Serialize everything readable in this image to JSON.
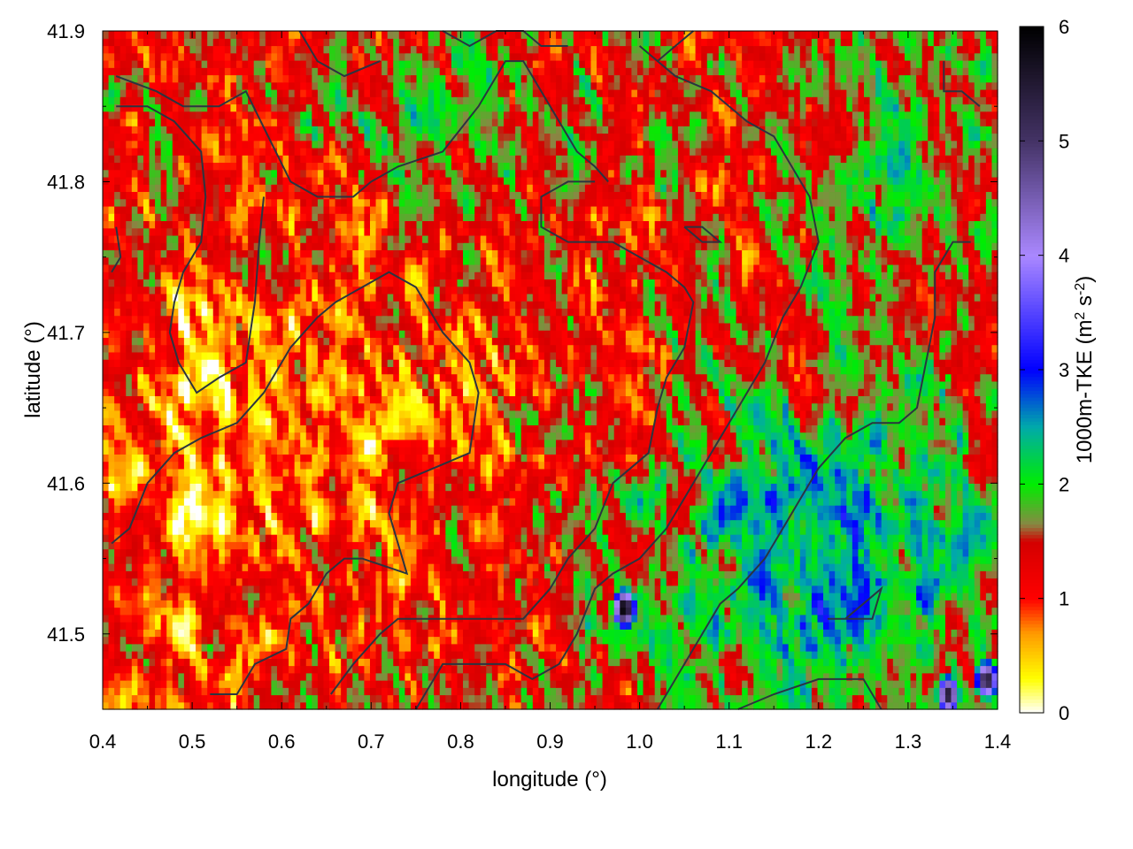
{
  "chart_data": {
    "type": "heatmap",
    "title": "",
    "xlabel": "longitude (°)",
    "ylabel": "latitude (°)",
    "colorbar_label_parts": [
      "1000m-TKE (m",
      "2",
      " s",
      "-2",
      ")"
    ],
    "xlim": [
      0.4,
      1.4
    ],
    "ylim": [
      41.45,
      41.9
    ],
    "x_ticks": [
      0.4,
      0.5,
      0.6,
      0.7,
      0.8,
      0.9,
      1.0,
      1.1,
      1.2,
      1.3,
      1.4
    ],
    "x_tick_labels": [
      "0.4",
      "0.5",
      "0.6",
      "0.7",
      "0.8",
      "0.9",
      "1.0",
      "1.1",
      "1.2",
      "1.3",
      "1.4"
    ],
    "y_ticks": [
      41.5,
      41.6,
      41.7,
      41.8,
      41.9
    ],
    "y_tick_labels": [
      "41.5",
      "41.6",
      "41.7",
      "41.8",
      "41.9"
    ],
    "colorbar_range": [
      0,
      6
    ],
    "colorbar_ticks": [
      0,
      1,
      2,
      3,
      4,
      5,
      6
    ],
    "colorbar_tick_labels": [
      "0",
      "1",
      "2",
      "3",
      "4",
      "5",
      "6"
    ],
    "colormap_stops": [
      {
        "value": 0.0,
        "color": "#ffffff"
      },
      {
        "value": 0.3,
        "color": "#ffff00"
      },
      {
        "value": 0.7,
        "color": "#ff9900"
      },
      {
        "value": 1.0,
        "color": "#ff0000"
      },
      {
        "value": 1.5,
        "color": "#d40000"
      },
      {
        "value": 1.65,
        "color": "#888844"
      },
      {
        "value": 2.0,
        "color": "#00ee00"
      },
      {
        "value": 2.5,
        "color": "#00aaaa"
      },
      {
        "value": 3.0,
        "color": "#0000ff"
      },
      {
        "value": 4.0,
        "color": "#aa88ff"
      },
      {
        "value": 5.0,
        "color": "#443366"
      },
      {
        "value": 6.0,
        "color": "#000000"
      }
    ],
    "field_approx": {
      "background_value": 1.2,
      "grid_spacing_deg": 0.0065,
      "regions": [
        {
          "name": "west-low",
          "lon": [
            0.4,
            0.62
          ],
          "lat": [
            41.5,
            41.75
          ],
          "value": 0.55
        },
        {
          "name": "central-low",
          "lon": [
            0.62,
            0.85
          ],
          "lat": [
            41.58,
            41.7
          ],
          "value": 0.75
        },
        {
          "name": "southeast-high",
          "lon": [
            1.0,
            1.4
          ],
          "lat": [
            41.45,
            41.65
          ],
          "value": 2.6
        },
        {
          "name": "northeast-high",
          "lon": [
            1.15,
            1.4
          ],
          "lat": [
            41.7,
            41.9
          ],
          "value": 1.9
        },
        {
          "name": "north-mixed",
          "lon": [
            0.6,
            1.0
          ],
          "lat": [
            41.8,
            41.9
          ],
          "value": 1.9
        }
      ],
      "hotspots": [
        {
          "lon": 0.983,
          "lat": 41.517,
          "value": 6.0
        },
        {
          "lon": 1.345,
          "lat": 41.46,
          "value": 5.5
        },
        {
          "lon": 1.388,
          "lat": 41.47,
          "value": 5.5
        }
      ]
    },
    "contours": [
      [
        [
          0.415,
          41.87
        ],
        [
          0.46,
          41.86
        ],
        [
          0.49,
          41.85
        ],
        [
          0.53,
          41.85
        ],
        [
          0.56,
          41.86
        ],
        [
          0.585,
          41.83
        ],
        [
          0.61,
          41.8
        ],
        [
          0.64,
          41.79
        ],
        [
          0.68,
          41.79
        ],
        [
          0.7,
          41.8
        ],
        [
          0.73,
          41.81
        ],
        [
          0.78,
          41.82
        ],
        [
          0.82,
          41.85
        ],
        [
          0.85,
          41.88
        ],
        [
          0.87,
          41.88
        ],
        [
          0.9,
          41.85
        ],
        [
          0.93,
          41.82
        ],
        [
          0.95,
          41.81
        ],
        [
          0.965,
          41.8
        ]
      ],
      [
        [
          0.415,
          41.85
        ],
        [
          0.45,
          41.85
        ],
        [
          0.48,
          41.84
        ],
        [
          0.51,
          41.82
        ],
        [
          0.515,
          41.79
        ],
        [
          0.51,
          41.76
        ],
        [
          0.49,
          41.74
        ],
        [
          0.48,
          41.72
        ],
        [
          0.475,
          41.7
        ],
        [
          0.485,
          41.68
        ],
        [
          0.505,
          41.66
        ],
        [
          0.53,
          41.67
        ],
        [
          0.56,
          41.68
        ],
        [
          0.57,
          41.72
        ],
        [
          0.575,
          41.76
        ],
        [
          0.58,
          41.79
        ]
      ],
      [
        [
          0.41,
          41.56
        ],
        [
          0.43,
          41.57
        ],
        [
          0.45,
          41.6
        ],
        [
          0.48,
          41.62
        ],
        [
          0.51,
          41.63
        ],
        [
          0.55,
          41.64
        ],
        [
          0.58,
          41.66
        ],
        [
          0.61,
          41.69
        ],
        [
          0.64,
          41.71
        ],
        [
          0.66,
          41.72
        ],
        [
          0.69,
          41.73
        ],
        [
          0.72,
          41.74
        ],
        [
          0.75,
          41.73
        ],
        [
          0.78,
          41.7
        ],
        [
          0.81,
          41.68
        ],
        [
          0.82,
          41.66
        ],
        [
          0.81,
          41.62
        ],
        [
          0.77,
          41.61
        ],
        [
          0.73,
          41.6
        ],
        [
          0.72,
          41.58
        ],
        [
          0.73,
          41.56
        ],
        [
          0.74,
          41.54
        ],
        [
          0.69,
          41.55
        ],
        [
          0.67,
          41.55
        ],
        [
          0.65,
          41.54
        ],
        [
          0.63,
          41.52
        ],
        [
          0.61,
          41.51
        ],
        [
          0.605,
          41.49
        ],
        [
          0.57,
          41.48
        ],
        [
          0.55,
          41.46
        ],
        [
          0.52,
          41.46
        ]
      ],
      [
        [
          0.655,
          41.46
        ],
        [
          0.68,
          41.48
        ],
        [
          0.71,
          41.5
        ],
        [
          0.73,
          41.51
        ],
        [
          0.76,
          41.51
        ],
        [
          0.8,
          41.51
        ],
        [
          0.84,
          41.51
        ],
        [
          0.87,
          41.51
        ],
        [
          0.9,
          41.53
        ],
        [
          0.92,
          41.55
        ],
        [
          0.95,
          41.57
        ],
        [
          0.97,
          41.6
        ],
        [
          0.99,
          41.61
        ],
        [
          1.01,
          41.62
        ],
        [
          1.02,
          41.65
        ],
        [
          1.03,
          41.67
        ],
        [
          1.05,
          41.69
        ],
        [
          1.06,
          41.72
        ],
        [
          1.05,
          41.73
        ],
        [
          1.03,
          41.74
        ],
        [
          1.0,
          41.75
        ],
        [
          0.97,
          41.76
        ],
        [
          0.95,
          41.76
        ],
        [
          0.92,
          41.76
        ],
        [
          0.89,
          41.77
        ],
        [
          0.89,
          41.79
        ],
        [
          0.92,
          41.8
        ],
        [
          0.95,
          41.8
        ]
      ],
      [
        [
          0.75,
          41.45
        ],
        [
          0.78,
          41.48
        ],
        [
          0.81,
          41.48
        ],
        [
          0.85,
          41.48
        ],
        [
          0.88,
          41.47
        ],
        [
          0.91,
          41.48
        ],
        [
          0.93,
          41.5
        ],
        [
          0.95,
          41.53
        ],
        [
          0.97,
          41.54
        ],
        [
          1.0,
          41.55
        ],
        [
          1.03,
          41.57
        ],
        [
          1.06,
          41.6
        ],
        [
          1.08,
          41.62
        ],
        [
          1.1,
          41.64
        ],
        [
          1.12,
          41.66
        ],
        [
          1.14,
          41.68
        ],
        [
          1.16,
          41.71
        ],
        [
          1.18,
          41.73
        ],
        [
          1.2,
          41.76
        ],
        [
          1.19,
          41.79
        ],
        [
          1.17,
          41.81
        ],
        [
          1.15,
          41.83
        ],
        [
          1.12,
          41.84
        ],
        [
          1.08,
          41.86
        ],
        [
          1.04,
          41.87
        ],
        [
          1.0,
          41.89
        ]
      ],
      [
        [
          1.02,
          41.45
        ],
        [
          1.05,
          41.48
        ],
        [
          1.07,
          41.5
        ],
        [
          1.09,
          41.52
        ],
        [
          1.11,
          41.53
        ],
        [
          1.14,
          41.55
        ],
        [
          1.16,
          41.57
        ],
        [
          1.18,
          41.59
        ],
        [
          1.2,
          41.61
        ],
        [
          1.23,
          41.63
        ],
        [
          1.26,
          41.64
        ],
        [
          1.29,
          41.64
        ],
        [
          1.31,
          41.65
        ],
        [
          1.32,
          41.68
        ],
        [
          1.33,
          41.71
        ],
        [
          1.33,
          41.74
        ],
        [
          1.35,
          41.76
        ],
        [
          1.37,
          41.76
        ]
      ],
      [
        [
          1.11,
          41.45
        ],
        [
          1.15,
          41.46
        ],
        [
          1.2,
          41.47
        ],
        [
          1.25,
          41.47
        ],
        [
          1.27,
          41.45
        ]
      ],
      [
        [
          1.21,
          41.51
        ],
        [
          1.24,
          41.51
        ],
        [
          1.26,
          41.51
        ],
        [
          1.27,
          41.53
        ],
        [
          1.25,
          41.52
        ],
        [
          1.23,
          41.51
        ]
      ],
      [
        [
          1.34,
          41.88
        ],
        [
          1.34,
          41.86
        ],
        [
          1.36,
          41.86
        ],
        [
          1.38,
          41.85
        ]
      ],
      [
        [
          0.62,
          41.9
        ],
        [
          0.64,
          41.88
        ],
        [
          0.67,
          41.87
        ],
        [
          0.71,
          41.88
        ]
      ],
      [
        [
          0.78,
          41.9
        ],
        [
          0.81,
          41.89
        ],
        [
          0.84,
          41.9
        ],
        [
          0.87,
          41.9
        ],
        [
          0.89,
          41.89
        ],
        [
          0.92,
          41.89
        ]
      ],
      [
        [
          1.02,
          41.88
        ],
        [
          1.04,
          41.89
        ],
        [
          1.06,
          41.9
        ]
      ],
      [
        [
          1.05,
          41.77
        ],
        [
          1.07,
          41.77
        ],
        [
          1.09,
          41.76
        ],
        [
          1.07,
          41.76
        ],
        [
          1.05,
          41.77
        ]
      ],
      [
        [
          0.415,
          41.77
        ],
        [
          0.42,
          41.75
        ],
        [
          0.41,
          41.74
        ]
      ]
    ]
  }
}
